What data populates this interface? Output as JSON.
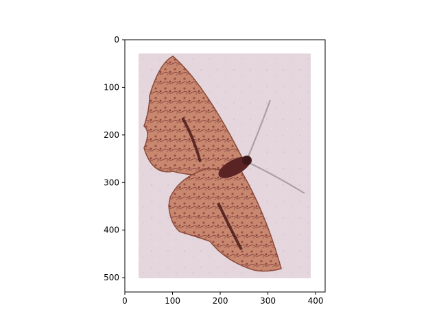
{
  "figure": {
    "image_subject": "moth photograph",
    "colors": {
      "background": "#ffffff",
      "axes_frame": "#000000",
      "photo_background": "#e4d6dc",
      "wing_base": "#c7886f",
      "wing_pattern_dark": "#4a1a1a",
      "wing_edge": "#8a4a3a"
    }
  },
  "chart_data": {
    "type": "image",
    "title": "",
    "xlabel": "",
    "ylabel": "",
    "xlim": [
      0,
      420
    ],
    "ylim": [
      530,
      0
    ],
    "xticks": [
      0,
      100,
      200,
      300,
      400
    ],
    "yticks": [
      0,
      100,
      200,
      300,
      400,
      500
    ],
    "image_extent": {
      "x": [
        28,
        388
      ],
      "y": [
        30,
        498
      ]
    },
    "grid": false,
    "legend": "none"
  }
}
